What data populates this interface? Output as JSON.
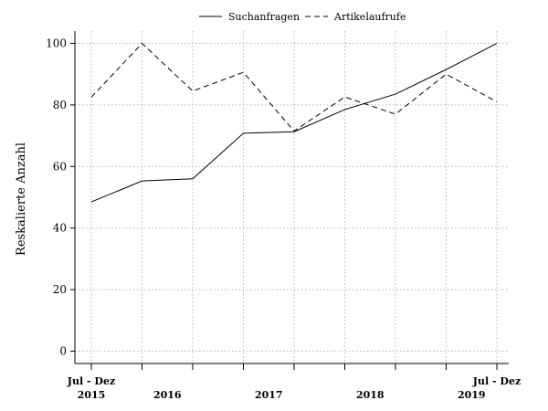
{
  "chart_data": {
    "type": "line",
    "ylabel": "Reskalierte Anzahl",
    "ylim": [
      -4,
      104
    ],
    "y_ticks": [
      0,
      20,
      40,
      60,
      80,
      100
    ],
    "grid": true,
    "legend_position": "top-center",
    "x": [
      0,
      1,
      2,
      3,
      4,
      5,
      6,
      7,
      8
    ],
    "x_tick_labels": [
      {
        "x": 0,
        "top": "Jul - Dez",
        "bottom": "2015"
      },
      {
        "x": 1.5,
        "top": "",
        "bottom": "2016"
      },
      {
        "x": 3.5,
        "top": "",
        "bottom": "2017"
      },
      {
        "x": 5.5,
        "top": "",
        "bottom": "2018"
      },
      {
        "x": 7.5,
        "top": "",
        "bottom": "2019"
      },
      {
        "x": 8,
        "top": "Jul - Dez",
        "bottom": ""
      }
    ],
    "series": [
      {
        "name": "Suchanfragen",
        "style": "solid",
        "values": [
          48.5,
          55.3,
          56,
          70.8,
          71.3,
          78.5,
          83.5,
          91.5,
          100
        ]
      },
      {
        "name": "Artikelaufrufe",
        "style": "dashed",
        "values": [
          82.5,
          100,
          84.5,
          90.6,
          71.5,
          82.6,
          77,
          90,
          81
        ]
      }
    ]
  }
}
